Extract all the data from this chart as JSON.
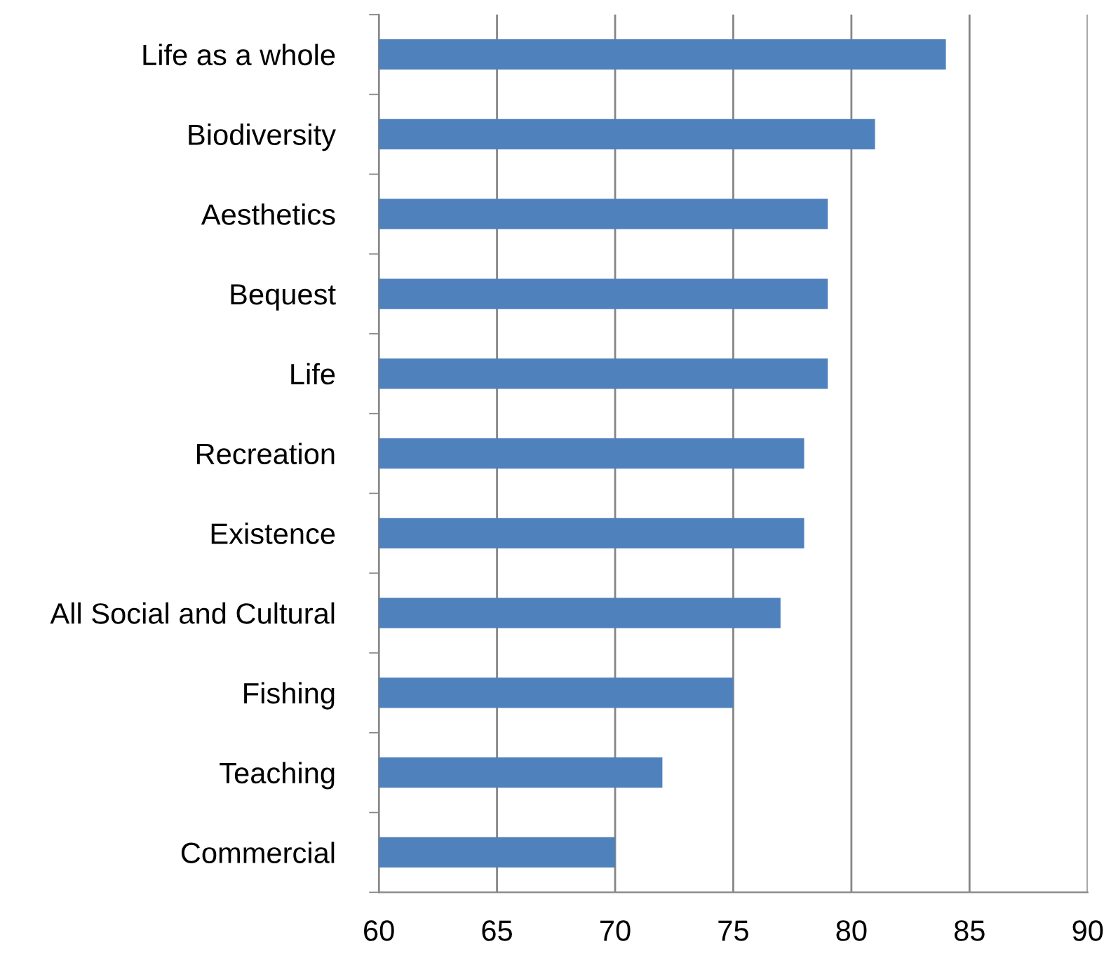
{
  "chart_data": {
    "type": "bar",
    "orientation": "horizontal",
    "categories": [
      "Life as a whole",
      "Biodiversity",
      "Aesthetics",
      "Bequest",
      "Life",
      "Recreation",
      "Existence",
      "All Social and Cultural",
      "Fishing",
      "Teaching",
      "Commercial"
    ],
    "values": [
      84,
      81,
      79,
      79,
      79,
      78,
      78,
      77,
      75,
      72,
      70
    ],
    "color": "#4f81bd",
    "xlim": [
      60,
      90
    ],
    "xticks": [
      60,
      65,
      70,
      75,
      80,
      85,
      90
    ],
    "grid": "x"
  }
}
